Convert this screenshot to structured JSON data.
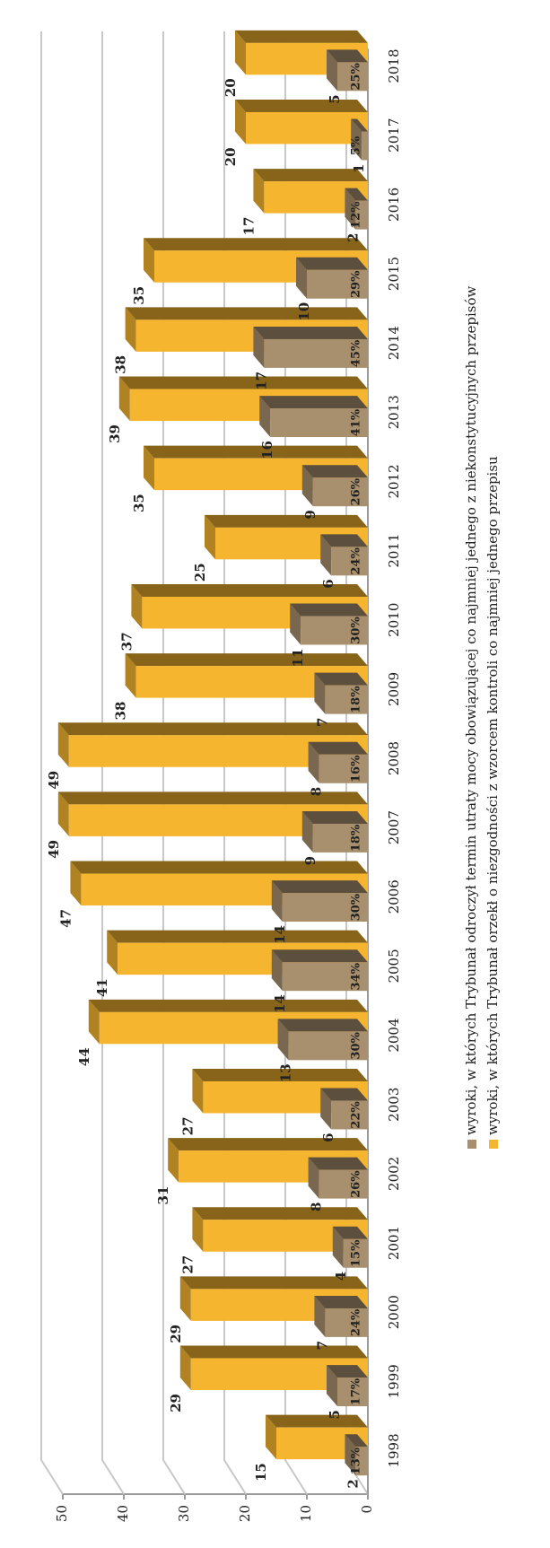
{
  "chart_data": {
    "type": "bar3d",
    "categories": [
      "1998",
      "1999",
      "2000",
      "2001",
      "2002",
      "2003",
      "2004",
      "2005",
      "2006",
      "2007",
      "2008",
      "2009",
      "2010",
      "2011",
      "2012",
      "2013",
      "2014",
      "2015",
      "2016",
      "2017",
      "2018"
    ],
    "series": [
      {
        "name": "wyroki, w których Trybunał orzekł o niezgodności z wzorcem kontroli co najmniej jednego przepisu",
        "color": "#f5b52e",
        "values": [
          15,
          29,
          29,
          27,
          31,
          27,
          44,
          41,
          47,
          49,
          49,
          38,
          37,
          25,
          35,
          39,
          38,
          35,
          17,
          20,
          20
        ]
      },
      {
        "name": "wyroki, w których Trybunał odroczył termin utraty mocy obowiązującej co najmniej jednego z niekonstytucyjnych przepisów",
        "color": "#a8906e",
        "values": [
          2,
          5,
          7,
          4,
          8,
          6,
          13,
          14,
          14,
          9,
          8,
          7,
          11,
          6,
          9,
          16,
          17,
          10,
          2,
          1,
          5
        ],
        "share_labels": [
          "13%",
          "17%",
          "24%",
          "15%",
          "26%",
          "22%",
          "30%",
          "34%",
          "30%",
          "18%",
          "16%",
          "18%",
          "30%",
          "24%",
          "26%",
          "41%",
          "45%",
          "29%",
          "12%",
          "5%",
          "25%"
        ]
      }
    ],
    "ylim": [
      0,
      50
    ],
    "yticks": [
      0,
      10,
      20,
      30,
      40,
      50
    ],
    "grid": true
  }
}
